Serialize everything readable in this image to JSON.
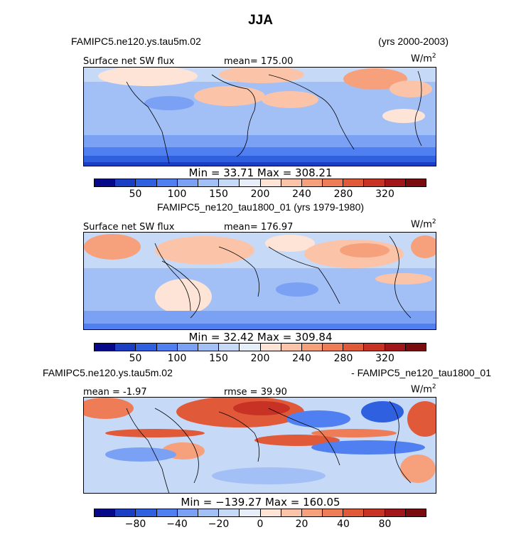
{
  "page": {
    "title": "JJA"
  },
  "colors": {
    "ramp": [
      "#08088a",
      "#1b3fc4",
      "#2f60e0",
      "#4f7ff0",
      "#7aa1f4",
      "#a2c0f6",
      "#c6daf8",
      "#e6eefa",
      "#fde4d6",
      "#fbc4a8",
      "#f6a07c",
      "#ee7c56",
      "#e05a3a",
      "#c83224",
      "#a0161a",
      "#7a0c10"
    ]
  },
  "chart_data": [
    {
      "type": "heatmap",
      "case_name": "FAMIPC5.ne120.ys.tau5m.02",
      "years": "(yrs 2000-2003)",
      "variable": "Surface net SW flux",
      "mean": "mean= 175.00",
      "units": "W/m",
      "units_sup": "2",
      "min_max": "Min =  33.71 Max = 308.21",
      "min": 33.71,
      "max": 308.21,
      "mean_value": 175.0,
      "colorbar_ticks": [
        "50",
        "100",
        "150",
        "200",
        "240",
        "280",
        "320"
      ]
    },
    {
      "type": "heatmap",
      "case_name": "FAMIPC5_ne120_tau1800_01 (yrs 1979-1980)",
      "variable": "Surface net SW flux",
      "mean": "mean= 176.97",
      "units": "W/m",
      "units_sup": "2",
      "min_max": "Min =  32.42 Max = 309.84",
      "min": 32.42,
      "max": 309.84,
      "mean_value": 176.97,
      "colorbar_ticks": [
        "50",
        "100",
        "150",
        "200",
        "240",
        "280",
        "320"
      ]
    },
    {
      "type": "heatmap",
      "case_left": "FAMIPC5.ne120.ys.tau5m.02",
      "case_right": "- FAMIPC5_ne120_tau1800_01",
      "mean": "mean =  -1.97",
      "rmse": "rmse =  39.90",
      "units": "W/m",
      "units_sup": "2",
      "min_max": "Min = −139.27 Max = 160.05",
      "min": -139.27,
      "max": 160.05,
      "mean_value": -1.97,
      "rmse_value": 39.9,
      "colorbar_ticks": [
        "−80",
        "−40",
        "−20",
        "0",
        "20",
        "40",
        "80"
      ]
    }
  ]
}
